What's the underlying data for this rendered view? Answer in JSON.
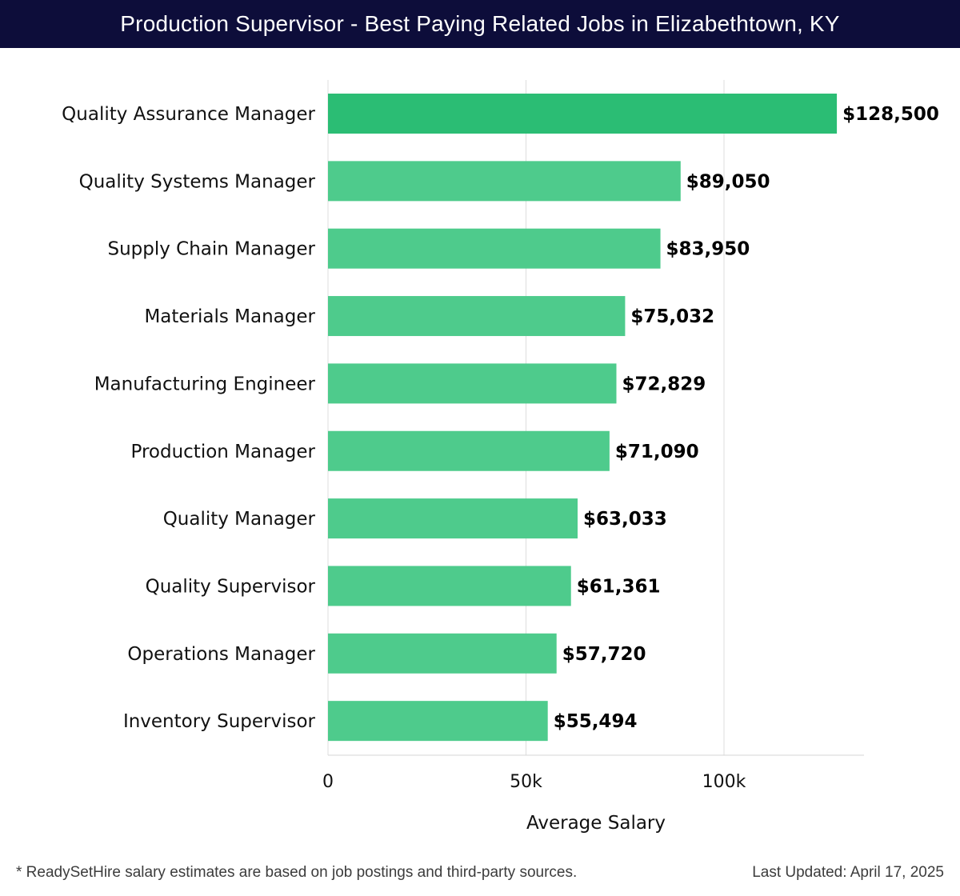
{
  "header": {
    "title": "Production Supervisor - Best Paying Related Jobs in Elizabethtown, KY"
  },
  "footer": {
    "note": "* ReadySetHire salary estimates are based on job postings and third-party sources.",
    "updated": "Last Updated: April 17, 2025"
  },
  "colors": {
    "header_bg": "#0d0d3a",
    "top_bar": "#2bbd74",
    "bar": "#4ecb8c",
    "grid": "#dddddd"
  },
  "chart_data": {
    "type": "bar",
    "orientation": "horizontal",
    "categories": [
      "Quality Assurance Manager",
      "Quality Systems Manager",
      "Supply Chain Manager",
      "Materials Manager",
      "Manufacturing Engineer",
      "Production Manager",
      "Quality Manager",
      "Quality Supervisor",
      "Operations Manager",
      "Inventory Supervisor"
    ],
    "values": [
      128500,
      89050,
      83950,
      75032,
      72829,
      71090,
      63033,
      61361,
      57720,
      55494
    ],
    "value_labels": [
      "$128,500",
      "$89,050",
      "$83,950",
      "$75,032",
      "$72,829",
      "$71,090",
      "$63,033",
      "$61,361",
      "$57,720",
      "$55,494"
    ],
    "xlabel": "Average Salary",
    "ylabel": "",
    "xlim": [
      0,
      135000
    ],
    "ticks": [
      0,
      50000,
      100000
    ],
    "tick_labels": [
      "0",
      "50k",
      "100k"
    ],
    "grid": true
  }
}
